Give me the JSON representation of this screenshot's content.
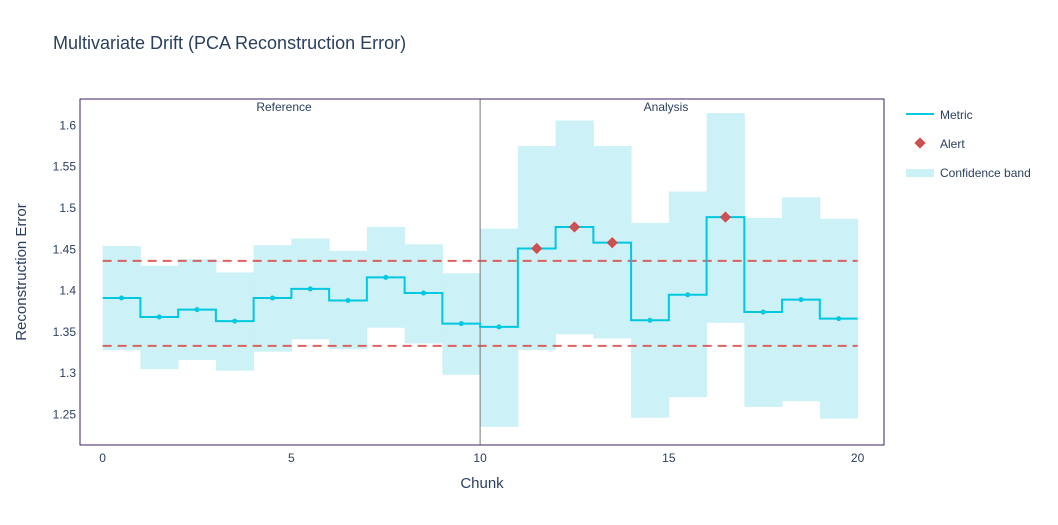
{
  "chart_data": {
    "type": "line",
    "title": "Multivariate Drift (PCA Reconstruction Error)",
    "xlabel": "Chunk",
    "ylabel": "Reconstruction Error",
    "xlim": [
      -0.6,
      20.7
    ],
    "ylim": [
      1.213,
      1.632
    ],
    "x_ticks": [
      0,
      5,
      10,
      15,
      20
    ],
    "y_ticks": [
      1.25,
      1.3,
      1.35,
      1.4,
      1.45,
      1.5,
      1.55,
      1.6
    ],
    "y_tick_labels": [
      "1.25",
      "1.3",
      "1.35",
      "1.4",
      "1.45",
      "1.5",
      "1.55",
      "1.6"
    ],
    "grid": false,
    "legend_position": "top-right outside",
    "period_labels": {
      "reference": "Reference",
      "analysis": "Analysis"
    },
    "period_boundary_x": 10,
    "thresholds": {
      "upper": 1.436,
      "lower": 1.333
    },
    "series": [
      {
        "name": "Metric",
        "color": "#00c8e0",
        "chunk_start": [
          0,
          1,
          2,
          3,
          4,
          5,
          6,
          7,
          8,
          9,
          10,
          11,
          12,
          13,
          14,
          15,
          16,
          17,
          18,
          19
        ],
        "values": [
          1.391,
          1.368,
          1.377,
          1.363,
          1.391,
          1.402,
          1.388,
          1.416,
          1.397,
          1.36,
          1.356,
          1.451,
          1.477,
          1.458,
          1.364,
          1.395,
          1.489,
          1.374,
          1.389,
          1.366
        ]
      },
      {
        "name": "Alert",
        "color": "#c65455",
        "x": [
          11.5,
          12.5,
          13.5,
          16.5
        ],
        "y": [
          1.451,
          1.477,
          1.458,
          1.489
        ]
      },
      {
        "name": "Confidence band",
        "color": "#ccf1f7",
        "upper": [
          1.454,
          1.43,
          1.438,
          1.422,
          1.455,
          1.463,
          1.448,
          1.477,
          1.456,
          1.421,
          1.475,
          1.575,
          1.606,
          1.575,
          1.482,
          1.52,
          1.615,
          1.488,
          1.513,
          1.487
        ],
        "lower": [
          1.328,
          1.305,
          1.316,
          1.303,
          1.326,
          1.341,
          1.329,
          1.355,
          1.336,
          1.298,
          1.235,
          1.328,
          1.347,
          1.342,
          1.246,
          1.271,
          1.361,
          1.259,
          1.266,
          1.245
        ]
      }
    ]
  }
}
